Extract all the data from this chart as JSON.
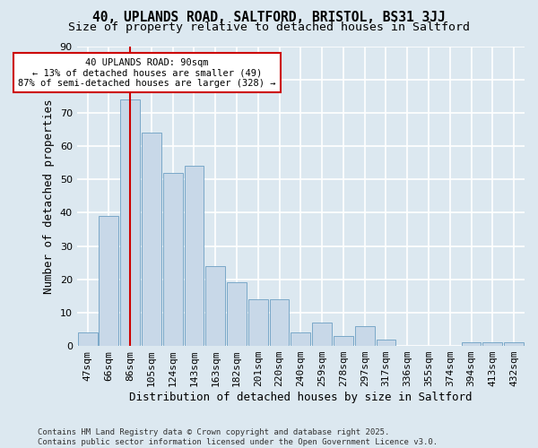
{
  "title1": "40, UPLANDS ROAD, SALTFORD, BRISTOL, BS31 3JJ",
  "title2": "Size of property relative to detached houses in Saltford",
  "xlabel": "Distribution of detached houses by size in Saltford",
  "ylabel": "Number of detached properties",
  "categories": [
    "47sqm",
    "66sqm",
    "86sqm",
    "105sqm",
    "124sqm",
    "143sqm",
    "163sqm",
    "182sqm",
    "201sqm",
    "220sqm",
    "240sqm",
    "259sqm",
    "278sqm",
    "297sqm",
    "317sqm",
    "336sqm",
    "355sqm",
    "374sqm",
    "394sqm",
    "413sqm",
    "432sqm"
  ],
  "values": [
    4,
    39,
    74,
    64,
    52,
    54,
    24,
    19,
    14,
    14,
    4,
    7,
    3,
    6,
    2,
    0,
    0,
    0,
    1,
    1,
    1
  ],
  "bar_color": "#c8d8e8",
  "bar_edge_color": "#7aa8c8",
  "background_color": "#dce8f0",
  "grid_color": "#ffffff",
  "red_line_x": 2,
  "annotation_line1": "40 UPLANDS ROAD: 90sqm",
  "annotation_line2": "← 13% of detached houses are smaller (49)",
  "annotation_line3": "87% of semi-detached houses are larger (328) →",
  "annotation_box_color": "#ffffff",
  "annotation_border_color": "#cc0000",
  "ylim": [
    0,
    90
  ],
  "yticks": [
    0,
    10,
    20,
    30,
    40,
    50,
    60,
    70,
    80,
    90
  ],
  "footer": "Contains HM Land Registry data © Crown copyright and database right 2025.\nContains public sector information licensed under the Open Government Licence v3.0.",
  "title_fontsize": 10.5,
  "subtitle_fontsize": 9.5,
  "annotation_fontsize": 7.5,
  "axis_label_fontsize": 9,
  "tick_fontsize": 8,
  "footer_fontsize": 6.5
}
